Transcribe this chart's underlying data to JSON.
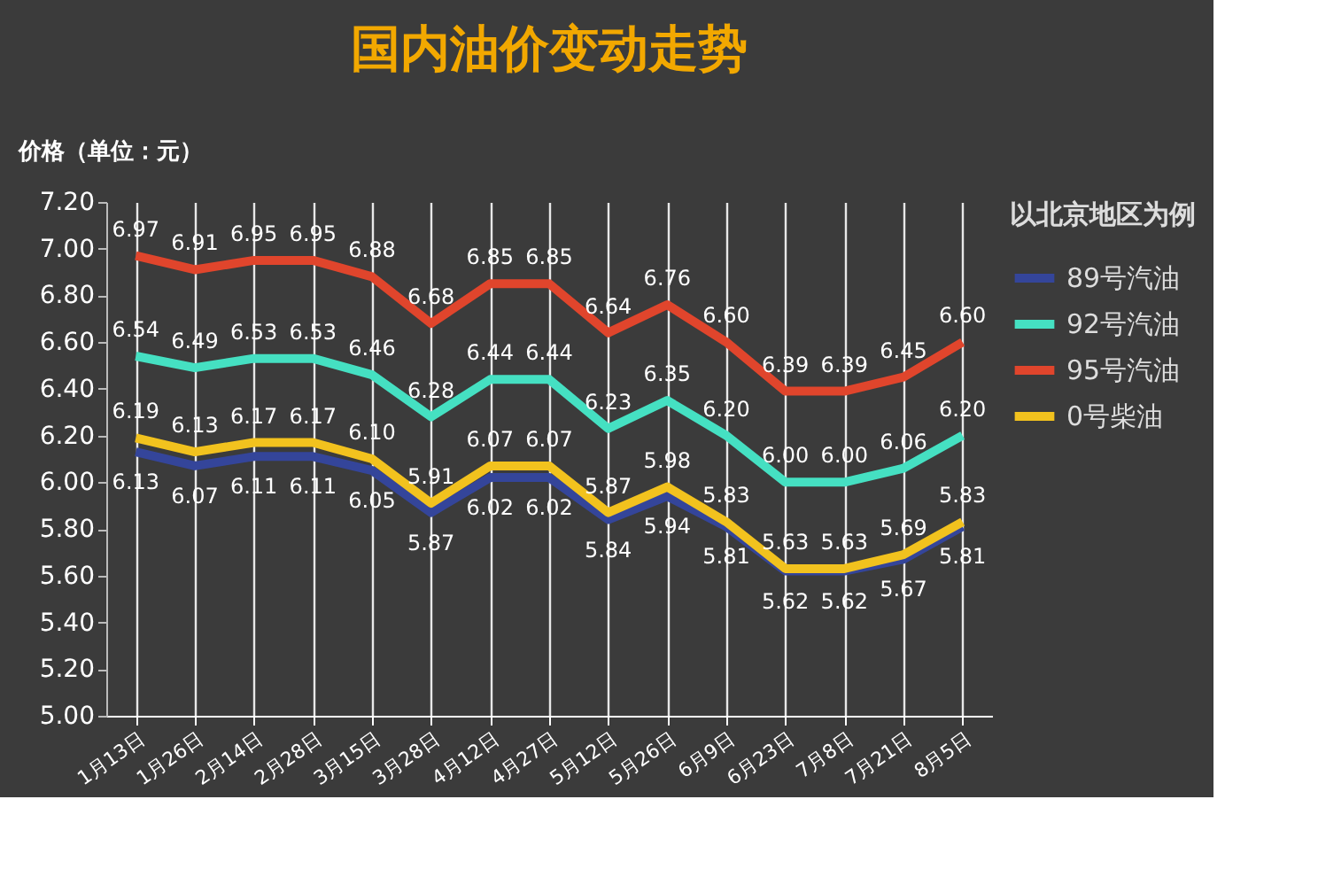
{
  "chart_data": {
    "type": "line",
    "title": "国内油价变动走势",
    "ylabel": "价格（单位：元）",
    "legend_title": "以北京地区为例",
    "categories": [
      "1月13日",
      "1月26日",
      "2月14日",
      "2月28日",
      "3月15日",
      "3月28日",
      "4月12日",
      "4月27日",
      "5月12日",
      "5月26日",
      "6月9日",
      "6月23日",
      "7月8日",
      "7月21日",
      "8月5日"
    ],
    "series": [
      {
        "name": "89号汽油",
        "color": "#34459a",
        "values": [
          6.13,
          6.07,
          6.11,
          6.11,
          6.05,
          5.87,
          6.02,
          6.02,
          5.84,
          5.94,
          5.81,
          5.62,
          5.62,
          5.67,
          5.81
        ],
        "value_labels": [
          "6.13",
          "6.07",
          "6.11",
          "6.11",
          "6.05",
          "5.87",
          "6.02",
          "6.02",
          "5.84",
          "5.94",
          "5.81",
          "5.62",
          "5.62",
          "5.67",
          "5.81"
        ]
      },
      {
        "name": "92号汽油",
        "color": "#45e0c2",
        "values": [
          6.54,
          6.49,
          6.53,
          6.53,
          6.46,
          6.28,
          6.44,
          6.44,
          6.23,
          6.35,
          6.2,
          6.0,
          6.0,
          6.06,
          6.2
        ],
        "value_labels": [
          "6.54",
          "6.49",
          "6.53",
          "6.53",
          "6.46",
          "6.28",
          "6.44",
          "6.44",
          "6.23",
          "6.35",
          "6.20",
          "6.00",
          "6.00",
          "6.06",
          "6.20"
        ]
      },
      {
        "name": "95号汽油",
        "color": "#e0452c",
        "values": [
          6.97,
          6.91,
          6.95,
          6.95,
          6.88,
          6.68,
          6.85,
          6.85,
          6.64,
          6.76,
          6.6,
          6.39,
          6.39,
          6.45,
          6.6
        ],
        "value_labels": [
          "6.97",
          "6.91",
          "6.95",
          "6.95",
          "6.88",
          "6.68",
          "6.85",
          "6.85",
          "6.64",
          "6.76",
          "6.60",
          "6.39",
          "6.39",
          "6.45",
          "6.60"
        ]
      },
      {
        "name": "0号柴油",
        "color": "#f2c21e",
        "values": [
          6.19,
          6.13,
          6.17,
          6.17,
          6.1,
          5.91,
          6.07,
          6.07,
          5.87,
          5.98,
          5.83,
          5.63,
          5.63,
          5.69,
          5.83
        ],
        "value_labels": [
          "6.19",
          "6.13",
          "6.17",
          "6.17",
          "6.10",
          "5.91",
          "6.07",
          "6.07",
          "5.87",
          "5.98",
          "5.83",
          "5.63",
          "5.63",
          "5.69",
          "5.83"
        ]
      }
    ],
    "ylim": [
      5.0,
      7.2
    ],
    "yticks": [
      {
        "value": 5.0,
        "label": "5.00"
      },
      {
        "value": 5.2,
        "label": "5.20"
      },
      {
        "value": 5.4,
        "label": "5.40"
      },
      {
        "value": 5.6,
        "label": "5.60"
      },
      {
        "value": 5.8,
        "label": "5.80"
      },
      {
        "value": 6.0,
        "label": "6.00"
      },
      {
        "value": 6.2,
        "label": "6.20"
      },
      {
        "value": 6.4,
        "label": "6.40"
      },
      {
        "value": 6.6,
        "label": "6.60"
      },
      {
        "value": 6.8,
        "label": "6.80"
      },
      {
        "value": 7.0,
        "label": "7.00"
      },
      {
        "value": 7.2,
        "label": "7.20"
      }
    ],
    "grid": "x",
    "legend": "right",
    "marker": "none",
    "line_style": "solid",
    "data_labels": true
  }
}
